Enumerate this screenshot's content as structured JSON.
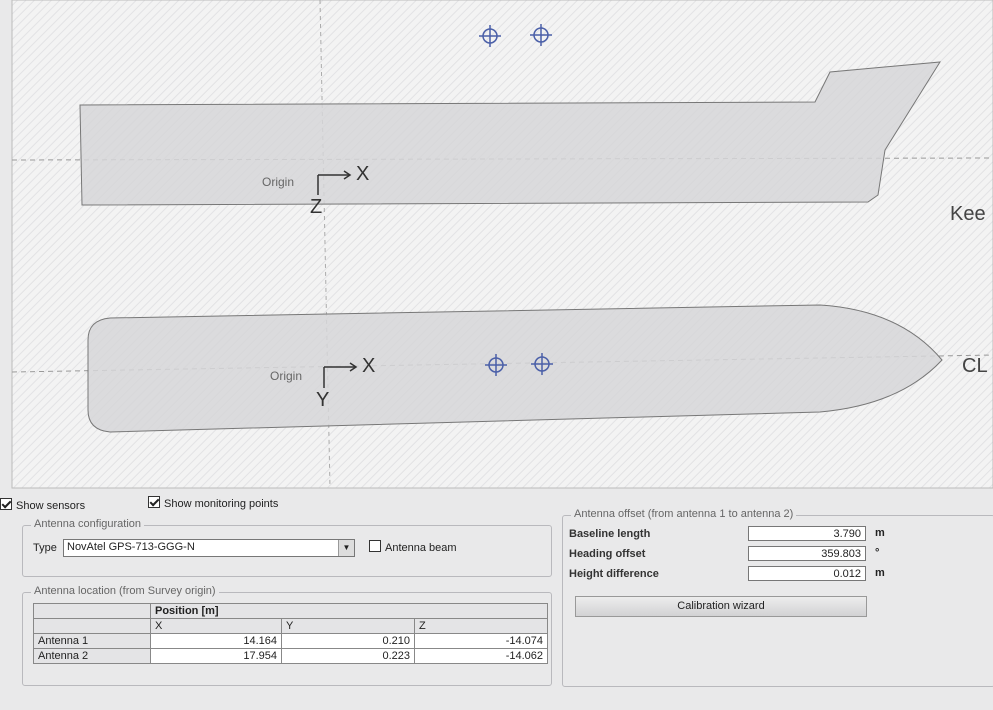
{
  "viewport": {
    "side_view": {
      "origin": "Origin",
      "x_axis": "X",
      "z_axis": "Z",
      "reference_line": "Kee"
    },
    "plan_view": {
      "origin": "Origin",
      "x_axis": "X",
      "y_axis": "Y",
      "reference_line": "CL"
    }
  },
  "options": {
    "show_sensors": {
      "label": "Show sensors",
      "checked": true
    },
    "show_monitoring_points": {
      "label": "Show monitoring points",
      "checked": true
    }
  },
  "antenna_configuration": {
    "title": "Antenna configuration",
    "type_label": "Type",
    "type_value": "NovAtel GPS-713-GGG-N",
    "antenna_beam": {
      "label": "Antenna beam",
      "checked": false
    }
  },
  "antenna_location": {
    "title": "Antenna location (from Survey origin)",
    "group_header": "Position [m]",
    "columns": [
      "X",
      "Y",
      "Z"
    ],
    "rows": [
      {
        "name": "Antenna 1",
        "values": [
          "14.164",
          "0.210",
          "-14.074"
        ]
      },
      {
        "name": "Antenna 2",
        "values": [
          "17.954",
          "0.223",
          "-14.062"
        ]
      }
    ]
  },
  "antenna_offset": {
    "title": "Antenna offset (from antenna 1 to antenna 2)",
    "fields": [
      {
        "label": "Baseline length",
        "value": "3.790",
        "unit": "m"
      },
      {
        "label": "Heading offset",
        "value": "359.803",
        "unit": "°"
      },
      {
        "label": "Height difference",
        "value": "0.012",
        "unit": "m"
      }
    ],
    "button": "Calibration wizard"
  }
}
